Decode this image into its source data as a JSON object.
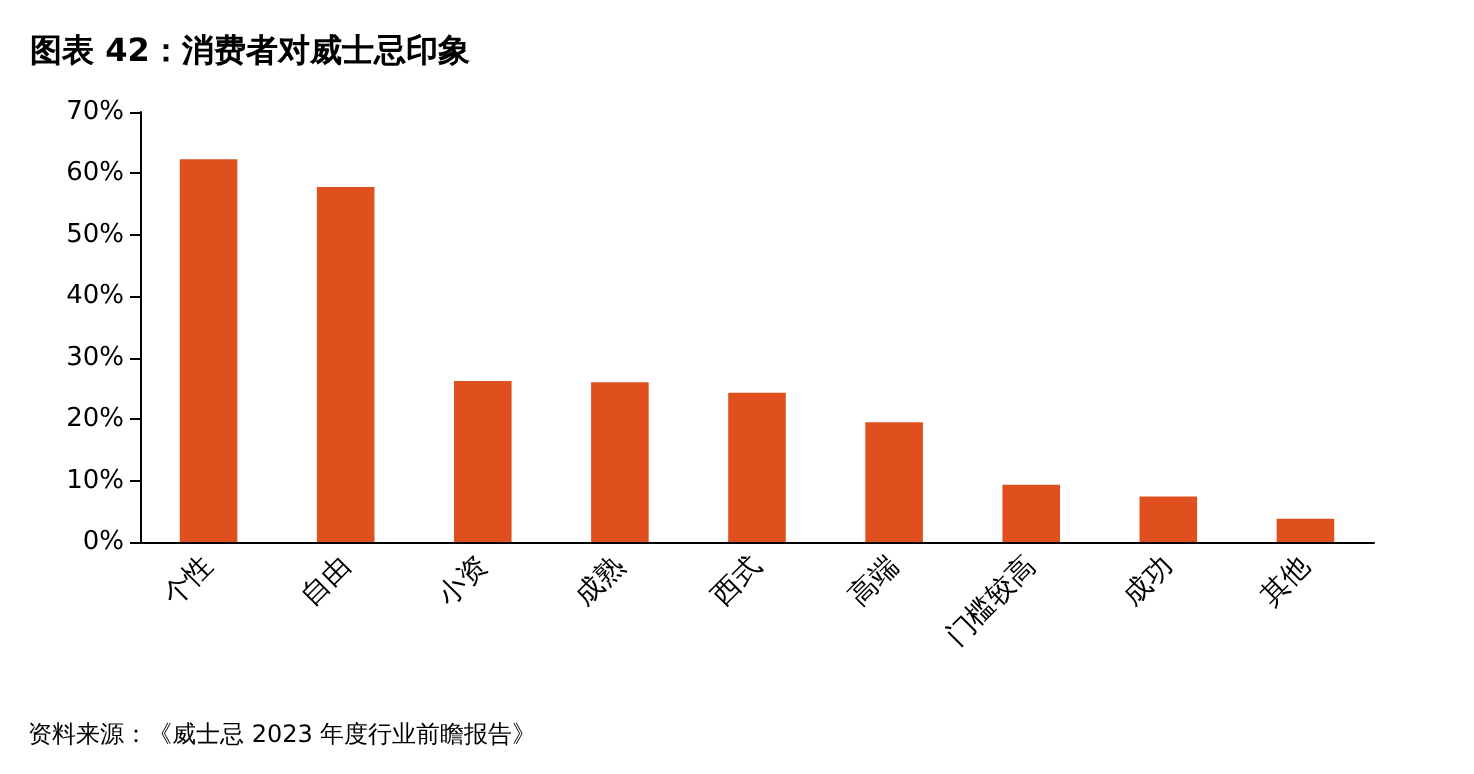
{
  "chart_data": {
    "type": "bar",
    "title": "图表 42：消费者对威士忌印象",
    "categories": [
      "个性",
      "自由",
      "小资",
      "成熟",
      "西式",
      "高端",
      "门槛较高",
      "成功",
      "其他"
    ],
    "values": [
      62.3,
      57.8,
      26.2,
      26.0,
      24.3,
      19.5,
      9.3,
      7.4,
      3.8
    ],
    "color": "#e0501e",
    "ylim": [
      0,
      70
    ],
    "yticks": [
      {
        "value": 0,
        "label": "0%"
      },
      {
        "value": 10,
        "label": "10%"
      },
      {
        "value": 20,
        "label": "20%"
      },
      {
        "value": 30,
        "label": "30%"
      },
      {
        "value": 40,
        "label": "40%"
      },
      {
        "value": 50,
        "label": "50%"
      },
      {
        "value": 60,
        "label": "60%"
      },
      {
        "value": 70,
        "label": "70%"
      }
    ],
    "grid": false,
    "annotations": [
      "资料来源：《威士忌 2023 年度行业前瞻报告》"
    ]
  }
}
